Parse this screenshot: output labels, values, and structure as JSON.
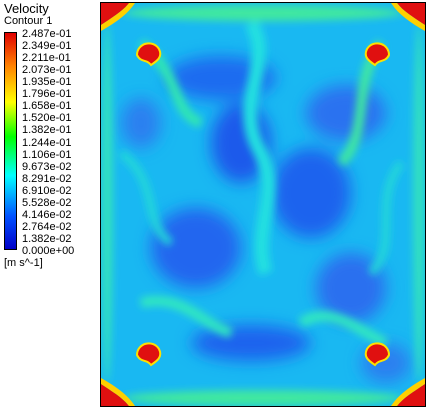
{
  "legend": {
    "title": "Velocity",
    "subtitle": "Contour 1",
    "unit": "[m s^-1]",
    "ticks": [
      "2.487e-01",
      "2.349e-01",
      "2.211e-01",
      "2.073e-01",
      "1.935e-01",
      "1.796e-01",
      "1.658e-01",
      "1.520e-01",
      "1.382e-01",
      "1.244e-01",
      "1.106e-01",
      "9.673e-02",
      "8.291e-02",
      "6.910e-02",
      "5.528e-02",
      "4.146e-02",
      "2.764e-02",
      "1.382e-02",
      "0.000e+00"
    ],
    "colors": {
      "max": "#e00000",
      "high": "#ff8000",
      "mid_high": "#ffff00",
      "mid": "#00ff00",
      "mid_low": "#00ffff",
      "low": "#0050ff",
      "min": "#0000c8"
    }
  }
}
